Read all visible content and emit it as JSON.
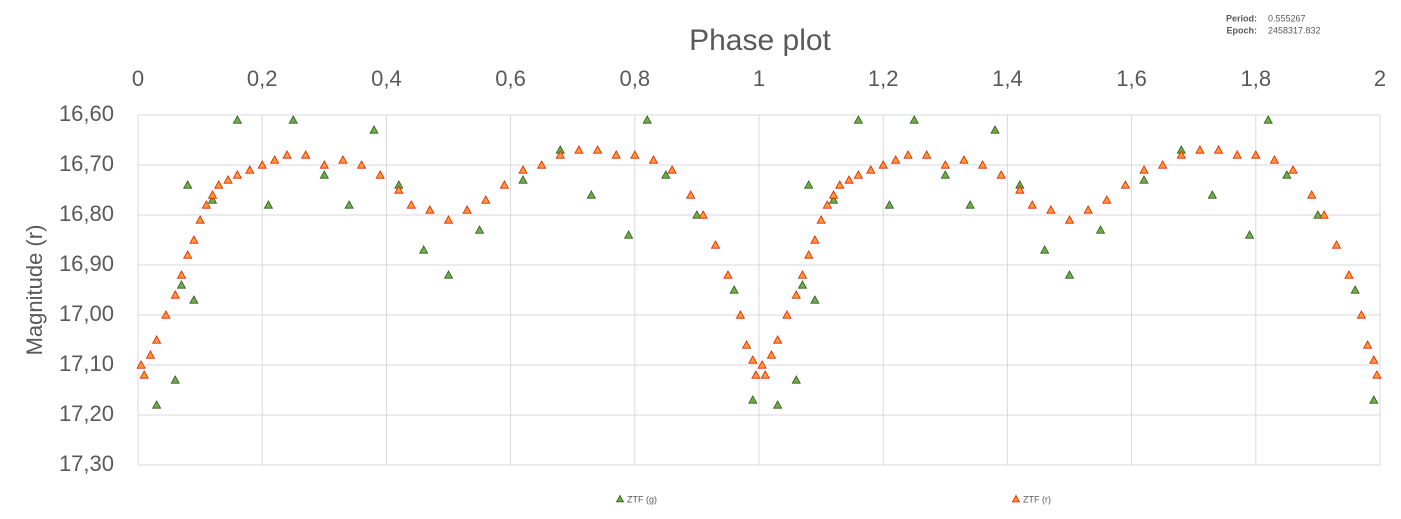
{
  "chart_data": {
    "type": "scatter",
    "title": "Phase plot",
    "ylabel": "Magnitude (r)",
    "annotations": [
      {
        "label": "Period:",
        "value": "0.555267"
      },
      {
        "label": "Epoch:",
        "value": "2458317.832"
      }
    ],
    "xlim": [
      0,
      2
    ],
    "xticks": [
      0,
      {
        "value": 0.2,
        "label": "0,2"
      },
      {
        "value": 0.4,
        "label": "0,4"
      },
      {
        "value": 0.6,
        "label": "0,6"
      },
      {
        "value": 0.8,
        "label": "0,8"
      },
      1,
      {
        "value": 1.2,
        "label": "1,2"
      },
      {
        "value": 1.4,
        "label": "1,4"
      },
      {
        "value": 1.6,
        "label": "1,6"
      },
      {
        "value": 1.8,
        "label": "1,8"
      },
      2
    ],
    "ylim": [
      16.6,
      17.3
    ],
    "yinverted": true,
    "yticks": [
      {
        "value": 16.6,
        "label": "16,60"
      },
      {
        "value": 16.7,
        "label": "16,70"
      },
      {
        "value": 16.8,
        "label": "16,80"
      },
      {
        "value": 16.9,
        "label": "16,90"
      },
      {
        "value": 17.0,
        "label": "17,00"
      },
      {
        "value": 17.1,
        "label": "17,10"
      },
      {
        "value": 17.2,
        "label": "17,20"
      },
      {
        "value": 17.3,
        "label": "17,30"
      }
    ],
    "grid": true,
    "legend": "bottom",
    "series": [
      {
        "name": "ZTF (g)",
        "color": "#70ad47",
        "edgecolor": "#2e5a1e",
        "x": [
          0.03,
          0.06,
          0.07,
          0.09,
          0.08,
          0.12,
          0.16,
          0.21,
          0.25,
          0.3,
          0.34,
          0.38,
          0.42,
          0.46,
          0.5,
          0.55,
          0.62,
          0.68,
          0.73,
          0.79,
          0.82,
          0.85,
          0.9,
          0.96,
          0.99,
          1.03,
          1.06,
          1.07,
          1.09,
          1.08,
          1.12,
          1.16,
          1.21,
          1.25,
          1.3,
          1.34,
          1.38,
          1.42,
          1.46,
          1.5,
          1.55,
          1.62,
          1.68,
          1.73,
          1.79,
          1.82,
          1.85,
          1.9,
          1.96,
          1.99
        ],
        "values": [
          17.18,
          17.13,
          16.94,
          16.97,
          16.74,
          16.77,
          16.61,
          16.78,
          16.61,
          16.72,
          16.78,
          16.63,
          16.74,
          16.87,
          16.92,
          16.83,
          16.73,
          16.67,
          16.76,
          16.84,
          16.61,
          16.72,
          16.8,
          16.95,
          17.17,
          17.18,
          17.13,
          16.94,
          16.97,
          16.74,
          16.77,
          16.61,
          16.78,
          16.61,
          16.72,
          16.78,
          16.63,
          16.74,
          16.87,
          16.92,
          16.83,
          16.73,
          16.67,
          16.76,
          16.84,
          16.61,
          16.72,
          16.8,
          16.95,
          17.17
        ]
      },
      {
        "name": "ZTF (r)",
        "color": "#ff9933",
        "edgecolor": "#e02000",
        "x": [
          0.005,
          0.01,
          0.02,
          0.03,
          0.045,
          0.06,
          0.07,
          0.08,
          0.09,
          0.1,
          0.11,
          0.12,
          0.13,
          0.145,
          0.16,
          0.18,
          0.2,
          0.22,
          0.24,
          0.27,
          0.3,
          0.33,
          0.36,
          0.39,
          0.42,
          0.44,
          0.47,
          0.5,
          0.53,
          0.56,
          0.59,
          0.62,
          0.65,
          0.68,
          0.71,
          0.74,
          0.77,
          0.8,
          0.83,
          0.86,
          0.89,
          0.91,
          0.93,
          0.95,
          0.97,
          0.98,
          0.99,
          0.995,
          1.005,
          1.01,
          1.02,
          1.03,
          1.045,
          1.06,
          1.07,
          1.08,
          1.09,
          1.1,
          1.11,
          1.12,
          1.13,
          1.145,
          1.16,
          1.18,
          1.2,
          1.22,
          1.24,
          1.27,
          1.3,
          1.33,
          1.36,
          1.39,
          1.42,
          1.44,
          1.47,
          1.5,
          1.53,
          1.56,
          1.59,
          1.62,
          1.65,
          1.68,
          1.71,
          1.74,
          1.77,
          1.8,
          1.83,
          1.86,
          1.89,
          1.91,
          1.93,
          1.95,
          1.97,
          1.98,
          1.99,
          1.995
        ],
        "values": [
          17.1,
          17.12,
          17.08,
          17.05,
          17,
          16.96,
          16.92,
          16.88,
          16.85,
          16.81,
          16.78,
          16.76,
          16.74,
          16.73,
          16.72,
          16.71,
          16.7,
          16.69,
          16.68,
          16.68,
          16.7,
          16.69,
          16.7,
          16.72,
          16.75,
          16.78,
          16.79,
          16.81,
          16.79,
          16.77,
          16.74,
          16.71,
          16.7,
          16.68,
          16.67,
          16.67,
          16.68,
          16.68,
          16.69,
          16.71,
          16.76,
          16.8,
          16.86,
          16.92,
          17,
          17.06,
          17.09,
          17.12,
          17.1,
          17.12,
          17.08,
          17.05,
          17,
          16.96,
          16.92,
          16.88,
          16.85,
          16.81,
          16.78,
          16.76,
          16.74,
          16.73,
          16.72,
          16.71,
          16.7,
          16.69,
          16.68,
          16.68,
          16.7,
          16.69,
          16.7,
          16.72,
          16.75,
          16.78,
          16.79,
          16.81,
          16.79,
          16.77,
          16.74,
          16.71,
          16.7,
          16.68,
          16.67,
          16.67,
          16.68,
          16.68,
          16.69,
          16.71,
          16.76,
          16.8,
          16.86,
          16.92,
          17,
          17.06,
          17.09,
          17.12
        ]
      }
    ]
  }
}
